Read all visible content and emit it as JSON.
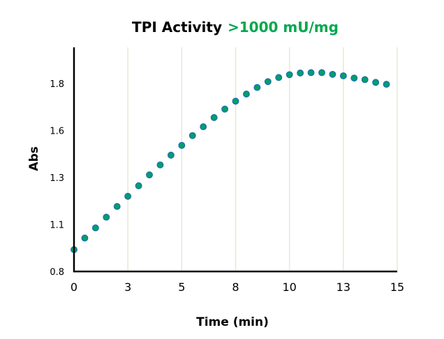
{
  "chart_data": {
    "type": "scatter",
    "title": "TPI Activity",
    "title_highlight": ">1000 mU/mg",
    "xlabel": "Time (min)",
    "ylabel": "Abs",
    "xlim": [
      0,
      15
    ],
    "ylim": [
      0.8,
      2.0
    ],
    "x_ticks": [
      0,
      2.5,
      5,
      7.5,
      10,
      12.5,
      15
    ],
    "x_tick_labels": [
      "0",
      "3",
      "5",
      "8",
      "10",
      "13",
      "15"
    ],
    "y_ticks": [
      0.8,
      1.05,
      1.3,
      1.55,
      1.8
    ],
    "y_tick_labels": [
      "0.8",
      "1.1",
      "1.3",
      "1.6",
      "1.8"
    ],
    "grid": "vertical",
    "colors": {
      "title": "#000000",
      "highlight": "#00a84f",
      "marker_fill": "#00a06a",
      "marker_edge": "#1f6fb0",
      "grid": "#e6e8d6"
    },
    "x": [
      0,
      0.5,
      1,
      1.5,
      2,
      2.5,
      3,
      3.5,
      4,
      4.5,
      5,
      5.5,
      6,
      6.5,
      7,
      7.5,
      8,
      8.5,
      9,
      9.5,
      10,
      10.5,
      11,
      11.5,
      12,
      12.5,
      13,
      13.5,
      14,
      14.5
    ],
    "y": [
      0.916,
      0.978,
      1.032,
      1.089,
      1.146,
      1.2,
      1.256,
      1.314,
      1.367,
      1.419,
      1.471,
      1.523,
      1.57,
      1.619,
      1.664,
      1.706,
      1.744,
      1.779,
      1.81,
      1.832,
      1.847,
      1.856,
      1.858,
      1.858,
      1.849,
      1.841,
      1.829,
      1.821,
      1.806,
      1.796
    ]
  }
}
